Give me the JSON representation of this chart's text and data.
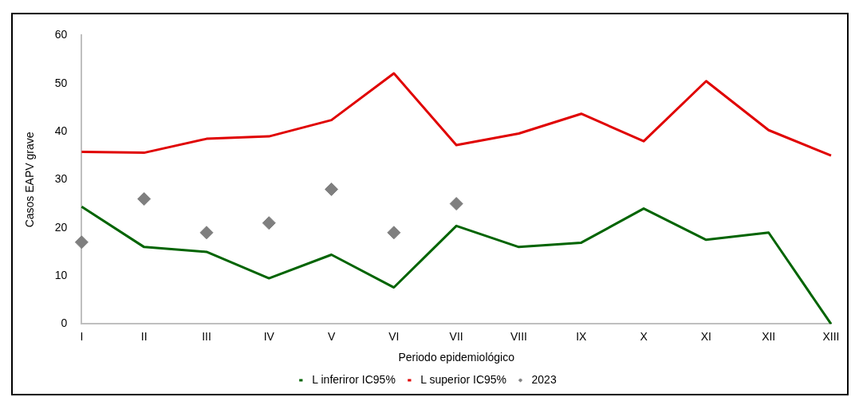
{
  "chart_data": {
    "type": "line",
    "xlabel": "Periodo epidemiológico",
    "ylabel": "Casos EAPV grave",
    "categories": [
      "I",
      "II",
      "III",
      "IV",
      "V",
      "VI",
      "VII",
      "VIII",
      "IX",
      "X",
      "XI",
      "XII",
      "XIII"
    ],
    "series": [
      {
        "name": "L inferiror IC95%",
        "color": "#006400",
        "values": [
          24.4,
          16,
          15,
          9.5,
          14.4,
          7.6,
          20.4,
          16,
          16.9,
          24,
          17.5,
          19,
          0
        ]
      },
      {
        "name": "L superior IC95%",
        "color": "#e00000",
        "values": [
          35.8,
          35.6,
          38.5,
          39,
          42.4,
          52.1,
          37.2,
          39.6,
          43.7,
          38,
          50.5,
          40.3,
          35
        ]
      },
      {
        "name": "2023",
        "type": "scatter",
        "color": "#7f7f7f",
        "marker": "diamond",
        "values": [
          17,
          26,
          19,
          21,
          28,
          19,
          25,
          null,
          null,
          null,
          null,
          null,
          null
        ]
      }
    ],
    "ylim": [
      0,
      60
    ],
    "yticks": [
      0,
      10,
      20,
      30,
      40,
      50,
      60
    ],
    "grid": false,
    "legend": "bottom",
    "marker": "none",
    "line_style": "solid"
  }
}
